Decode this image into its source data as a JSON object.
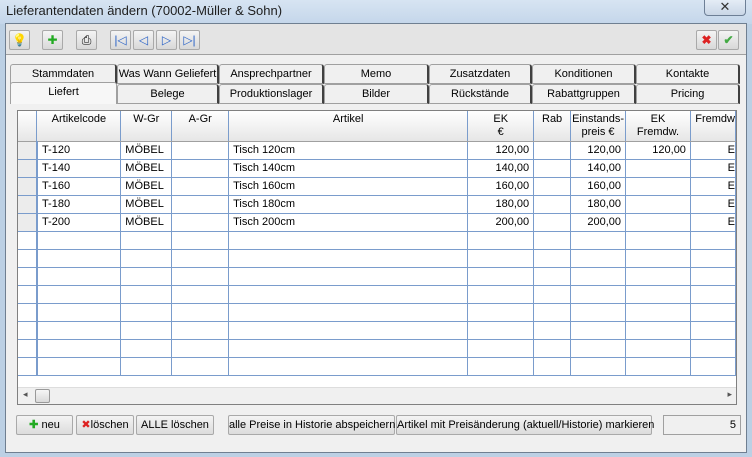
{
  "window": {
    "title": "Lieferantendaten ändern (70002-Müller & Sohn)",
    "close_label": "✕"
  },
  "toolbar": {
    "icons": [
      "lightbulb-icon",
      "new-document-icon",
      "print-icon",
      "first-record-icon",
      "previous-record-icon",
      "next-record-icon",
      "last-record-icon",
      "cancel-icon",
      "confirm-icon"
    ]
  },
  "tabs": {
    "row1": [
      "Stammdaten",
      "Was Wann Geliefert",
      "Ansprechpartner",
      "Memo",
      "Zusatzdaten",
      "Konditionen",
      "Kontakte"
    ],
    "row2": [
      "Liefert",
      "Belege",
      "Produktionslager",
      "Bilder",
      "Rückstände",
      "Rabattgruppen",
      "Pricing"
    ],
    "selected": "Liefert"
  },
  "table": {
    "columns": [
      "Artikelcode",
      "W-Gr",
      "A-Gr",
      "Artikel",
      "EK\n€",
      "Rab",
      "Einstands-\npreis €",
      "EK\nFremdw.",
      "Fremdw"
    ],
    "rows": [
      [
        "T-120",
        "MÖBEL",
        "",
        "Tisch 120cm",
        "120,00",
        "",
        "120,00",
        "120,00",
        "E"
      ],
      [
        "T-140",
        "MÖBEL",
        "",
        "Tisch 140cm",
        "140,00",
        "",
        "140,00",
        "",
        "E"
      ],
      [
        "T-160",
        "MÖBEL",
        "",
        "Tisch 160cm",
        "160,00",
        "",
        "160,00",
        "",
        "E"
      ],
      [
        "T-180",
        "MÖBEL",
        "",
        "Tisch 180cm",
        "180,00",
        "",
        "180,00",
        "",
        "E"
      ],
      [
        "T-200",
        "MÖBEL",
        "",
        "Tisch 200cm",
        "200,00",
        "",
        "200,00",
        "",
        "E"
      ]
    ]
  },
  "buttons": {
    "new": "neu",
    "delete": "löschen",
    "delete_all": "ALLE löschen",
    "save_history": "alle Preise in Historie abspeichern",
    "mark_changes": "Artikel mit Preisänderung (aktuell/Historie) markieren"
  },
  "record_count": "5"
}
